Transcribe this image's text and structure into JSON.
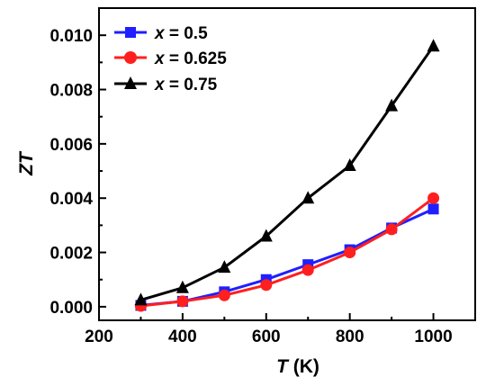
{
  "chart_data": {
    "type": "line",
    "xlabel": {
      "var": "T",
      "unit": " (K)"
    },
    "ylabel": "ZT",
    "xlim": [
      200,
      1100
    ],
    "ylim": [
      -0.0005,
      0.011
    ],
    "xticks": [
      200,
      400,
      600,
      800,
      1000
    ],
    "xtick_labels": [
      "200",
      "400",
      "600",
      "800",
      "1000"
    ],
    "yticks": [
      0.0,
      0.002,
      0.004,
      0.006,
      0.008,
      0.01
    ],
    "ytick_labels": [
      "0.000",
      "0.002",
      "0.004",
      "0.006",
      "0.008",
      "0.010"
    ],
    "grid": false,
    "legend_position": "top-left",
    "x": [
      300,
      400,
      500,
      600,
      700,
      800,
      900,
      1000
    ],
    "series": [
      {
        "name": "x = 0.5",
        "legend_var": "x",
        "legend_value": " = 0.5",
        "marker": "square",
        "color": "#1f1fff",
        "values": [
          5e-05,
          0.0002,
          0.00055,
          0.001,
          0.00155,
          0.0021,
          0.0029,
          0.0036
        ]
      },
      {
        "name": "x = 0.625",
        "legend_var": "x",
        "legend_value": " = 0.625",
        "marker": "circle",
        "color": "#ff1f1f",
        "values": [
          3e-05,
          0.0002,
          0.00042,
          0.0008,
          0.00135,
          0.002,
          0.00285,
          0.004
        ]
      },
      {
        "name": "x = 0.75",
        "legend_var": "x",
        "legend_value": " = 0.75",
        "marker": "triangle",
        "color": "#000000",
        "values": [
          0.00025,
          0.0007,
          0.00145,
          0.0026,
          0.004,
          0.0052,
          0.0074,
          0.0096
        ]
      }
    ]
  }
}
